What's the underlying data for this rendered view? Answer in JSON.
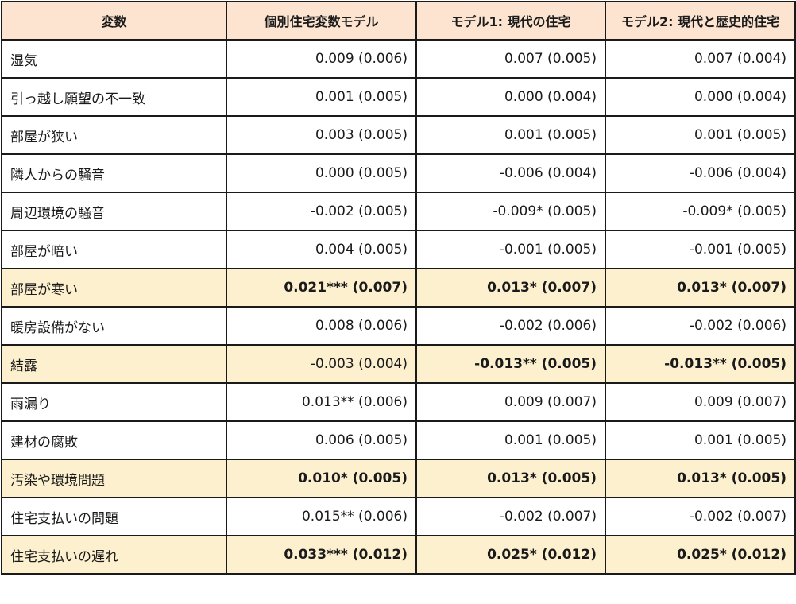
{
  "headers": [
    "変数",
    "個別住宅変数モデル",
    "モデル1: 現代の住宅",
    "モデル2: 現代と歴史的住宅"
  ],
  "rows": [
    {
      "label": "湿気",
      "values": [
        "0.009 (0.006)",
        "0.007 (0.005)",
        "0.007 (0.004)"
      ],
      "highlight": false,
      "styles": [
        "",
        "",
        ""
      ]
    },
    {
      "label": "引っ越し願望の不一致",
      "values": [
        "0.001 (0.005)",
        "0.000 (0.004)",
        "0.000 (0.004)"
      ],
      "highlight": false,
      "styles": [
        "",
        "",
        ""
      ]
    },
    {
      "label": "部屋が狭い",
      "values": [
        "0.003 (0.005)",
        "0.001 (0.005)",
        "0.001 (0.005)"
      ],
      "highlight": false,
      "styles": [
        "",
        "",
        ""
      ]
    },
    {
      "label": "隣人からの騒音",
      "values": [
        "0.000 (0.005)",
        "-0.006 (0.004)",
        "-0.006 (0.004)"
      ],
      "highlight": false,
      "styles": [
        "",
        "",
        ""
      ]
    },
    {
      "label": "周辺環境の騒音",
      "values": [
        "-0.002 (0.005)",
        "-0.009* (0.005)",
        "-0.009* (0.005)"
      ],
      "highlight": false,
      "styles": [
        "",
        "red",
        "red"
      ]
    },
    {
      "label": "部屋が暗い",
      "values": [
        "0.004 (0.005)",
        "-0.001 (0.005)",
        "-0.001 (0.005)"
      ],
      "highlight": false,
      "styles": [
        "",
        "",
        ""
      ]
    },
    {
      "label": "部屋が寒い",
      "values": [
        "0.021*** (0.007)",
        "0.013* (0.007)",
        "0.013* (0.007)"
      ],
      "highlight": true,
      "styles": [
        "bold",
        "bold",
        "bold"
      ]
    },
    {
      "label": "暖房設備がない",
      "values": [
        "0.008 (0.006)",
        "-0.002 (0.006)",
        "-0.002 (0.006)"
      ],
      "highlight": false,
      "styles": [
        "",
        "",
        ""
      ]
    },
    {
      "label": "結露",
      "values": [
        "-0.003 (0.004)",
        "-0.013** (0.005)",
        "-0.013** (0.005)"
      ],
      "highlight": true,
      "styles": [
        "",
        "bold",
        "bold"
      ]
    },
    {
      "label": "雨漏り",
      "values": [
        "0.013** (0.006)",
        "0.009 (0.007)",
        "0.009 (0.007)"
      ],
      "highlight": false,
      "styles": [
        "",
        "",
        ""
      ]
    },
    {
      "label": "建材の腐敗",
      "values": [
        "0.006 (0.005)",
        "0.001 (0.005)",
        "0.001 (0.005)"
      ],
      "highlight": false,
      "styles": [
        "",
        "",
        ""
      ]
    },
    {
      "label": "汚染や環境問題",
      "values": [
        "0.010* (0.005)",
        "0.013* (0.005)",
        "0.013* (0.005)"
      ],
      "highlight": true,
      "styles": [
        "bold",
        "bold",
        "bold"
      ]
    },
    {
      "label": "住宅支払いの問題",
      "values": [
        "0.015** (0.006)",
        "-0.002 (0.007)",
        "-0.002 (0.007)"
      ],
      "highlight": false,
      "styles": [
        "",
        "",
        ""
      ]
    },
    {
      "label": "住宅支払いの遅れ",
      "values": [
        "0.033*** (0.012)",
        "0.025* (0.012)",
        "0.025* (0.012)"
      ],
      "highlight": true,
      "styles": [
        "bold",
        "bold",
        "bold"
      ]
    }
  ],
  "colors": {
    "header_bg": "#fce4d0",
    "highlight_bg": "#fdf0cf",
    "significant_text": "#e8201e",
    "border": "#1a1a1a"
  }
}
